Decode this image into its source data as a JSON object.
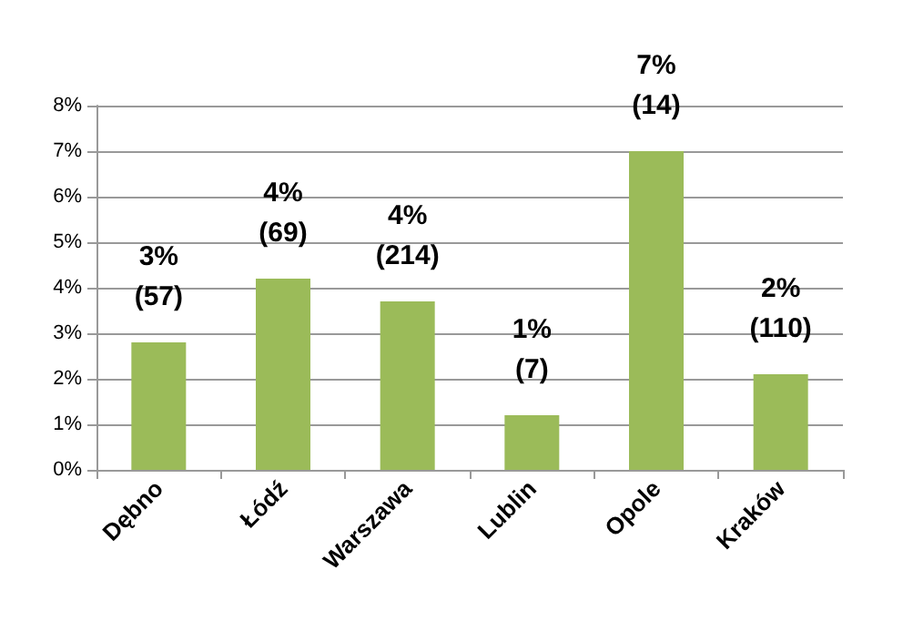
{
  "chart_data": {
    "type": "bar",
    "categories": [
      "Dębno",
      "Łódź",
      "Warszawa",
      "Lublin",
      "Opole",
      "Kraków"
    ],
    "values": [
      2.8,
      4.2,
      3.7,
      1.2,
      7.0,
      2.1
    ],
    "color": "#9bbb59",
    "value_labels": [
      "3%\n(57)",
      "4%\n(69)",
      "4%\n(214)",
      "1%\n(7)",
      "7%\n(14)",
      "2%\n(110)"
    ],
    "ylim": [
      0,
      8
    ],
    "yticks": [
      {
        "value": 0,
        "label": "0%"
      },
      {
        "value": 1,
        "label": "1%"
      },
      {
        "value": 2,
        "label": "2%"
      },
      {
        "value": 3,
        "label": "3%"
      },
      {
        "value": 4,
        "label": "4%"
      },
      {
        "value": 5,
        "label": "5%"
      },
      {
        "value": 6,
        "label": "6%"
      },
      {
        "value": 7,
        "label": "7%"
      },
      {
        "value": 8,
        "label": "8%"
      }
    ],
    "grid": "y"
  }
}
